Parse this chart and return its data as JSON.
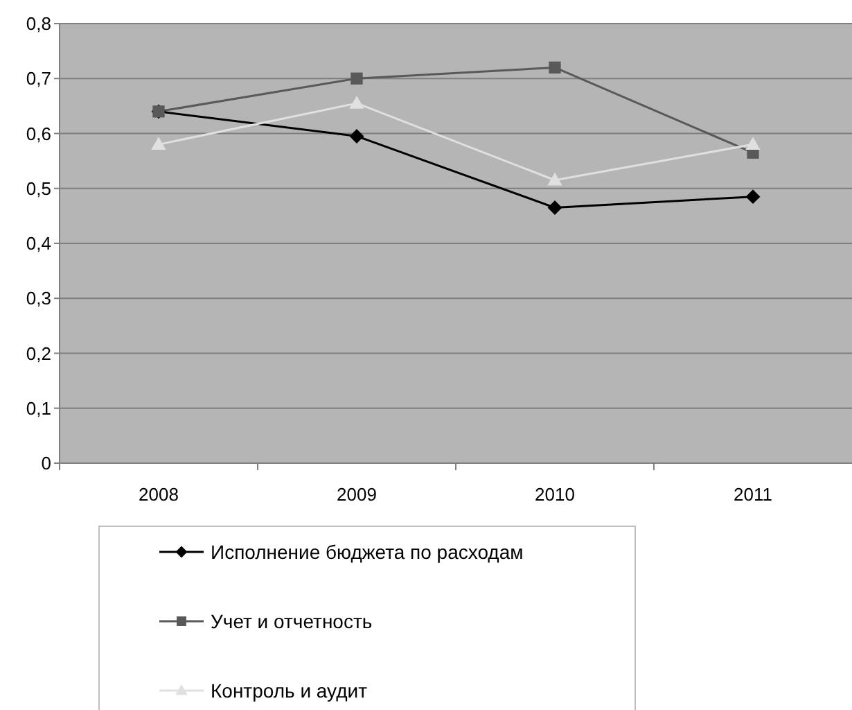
{
  "chart_data": {
    "type": "line",
    "categories": [
      "2008",
      "2009",
      "2010",
      "2011"
    ],
    "series": [
      {
        "name": "Исполнение бюджета по расходам",
        "color": "#000000",
        "marker": "diamond",
        "values": [
          0.64,
          0.595,
          0.465,
          0.485
        ]
      },
      {
        "name": "Учет и отчетность",
        "color": "#595959",
        "marker": "square",
        "values": [
          0.64,
          0.7,
          0.72,
          0.565
        ]
      },
      {
        "name": "Контроль и аудит",
        "color": "#e0e0e0",
        "marker": "triangle",
        "values": [
          0.58,
          0.655,
          0.515,
          0.58
        ]
      }
    ],
    "ylim": [
      0,
      0.8
    ],
    "yticks": [
      0,
      {
        "value": 0.1,
        "label": "0,1"
      },
      {
        "value": 0.2,
        "label": "0,2"
      },
      {
        "value": 0.3,
        "label": "0,3"
      },
      {
        "value": 0.4,
        "label": "0,4"
      },
      {
        "value": 0.5,
        "label": "0,5"
      },
      {
        "value": 0.6,
        "label": "0,6"
      },
      {
        "value": 0.7,
        "label": "0,7"
      },
      {
        "value": 0.8,
        "label": "0,8"
      }
    ],
    "grid": "y",
    "legend": "bottom"
  }
}
